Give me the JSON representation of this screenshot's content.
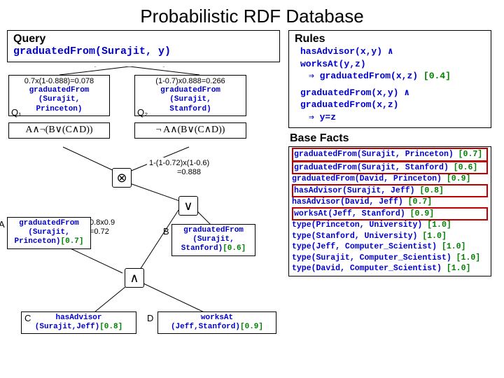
{
  "title": "Probabilistic RDF Database",
  "query": {
    "label": "Query",
    "text": "graduatedFrom(Surajit, y)"
  },
  "rules": {
    "label": "Rules",
    "r1a": "hasAdvisor(x,y) ∧",
    "r1b": "worksAt(y,z)",
    "r1c": "⇒ graduatedFrom(x,z) [0.4]",
    "r2a": "graduatedFrom(x,y) ∧",
    "r2b": "graduatedFrom(x,z)",
    "r2c": "⇒ y=z"
  },
  "facts": {
    "label": "Base Facts",
    "items": [
      {
        "pred": "graduatedFrom",
        "args": "(Surajit, Princeton)",
        "prob": "[0.7]",
        "hl": true
      },
      {
        "pred": "graduatedFrom",
        "args": "(Surajit, Stanford)",
        "prob": "[0.6]",
        "hl": true
      },
      {
        "pred": "graduatedFrom",
        "args": "(David, Princeton)",
        "prob": "[0.9]",
        "hl": false
      },
      {
        "pred": "hasAdvisor",
        "args": "(Surajit, Jeff)",
        "prob": "[0.8]",
        "hl": true
      },
      {
        "pred": "hasAdvisor",
        "args": "(David, Jeff)",
        "prob": "[0.7]",
        "hl": false
      },
      {
        "pred": "worksAt",
        "args": "(Jeff, Stanford)",
        "prob": "[0.9]",
        "hl": true
      },
      {
        "pred": "type",
        "args": "(Princeton, University)",
        "prob": "[1.0]",
        "hl": false
      },
      {
        "pred": "type",
        "args": "(Stanford, University)",
        "prob": "[1.0]",
        "hl": false
      },
      {
        "pred": "type",
        "args": "(Jeff, Computer_Scientist)",
        "prob": "[1.0]",
        "hl": false
      },
      {
        "pred": "type",
        "args": "(Surajit, Computer_Scientist)",
        "prob": "[1.0]",
        "hl": false
      },
      {
        "pred": "type",
        "args": "(David, Computer_Scientist)",
        "prob": "[1.0]",
        "hl": false
      }
    ]
  },
  "nodes": {
    "q1_calc": "0.7x(1-0.888)=0.078",
    "q1_text1": "graduatedFrom",
    "q1_text2": "(Surajit,",
    "q1_text3": "Princeton)",
    "q1_label": "Q₁",
    "q1_formula": "A∧¬(B∨(C∧D))",
    "q2_calc": "(1-0.7)x0.888=0.266",
    "q2_text1": "graduatedFrom",
    "q2_text2": "(Surajit,",
    "q2_text3": "Stanford)",
    "q2_label": "Q₂",
    "q2_formula": "¬ A∧(B∨(C∧D))",
    "otimes_calc1": "1-(1-0.72)x(1-0.6)",
    "otimes_calc2": "=0.888",
    "and_calc1": "0.8x0.9",
    "and_calc2": "=0.72",
    "A_label": "A",
    "A_text1": "graduatedFrom",
    "A_text2": "(Surajit,",
    "A_text3": "Princeton)",
    "A_prob": "[0.7]",
    "B_label": "B",
    "B_text1": "graduatedFrom",
    "B_text2": "(Surajit,",
    "B_text3": "Stanford)",
    "B_prob": "[0.6]",
    "C_label": "C",
    "C_text1": "hasAdvisor",
    "C_text2": "(Surajit,Jeff)",
    "C_prob": "[0.8]",
    "D_label": "D",
    "D_text1": "worksAt",
    "D_text2": "(Jeff,Stanford)",
    "D_prob": "[0.9]"
  },
  "ops": {
    "otimes": "⊗",
    "or": "∨",
    "and": "∧"
  }
}
